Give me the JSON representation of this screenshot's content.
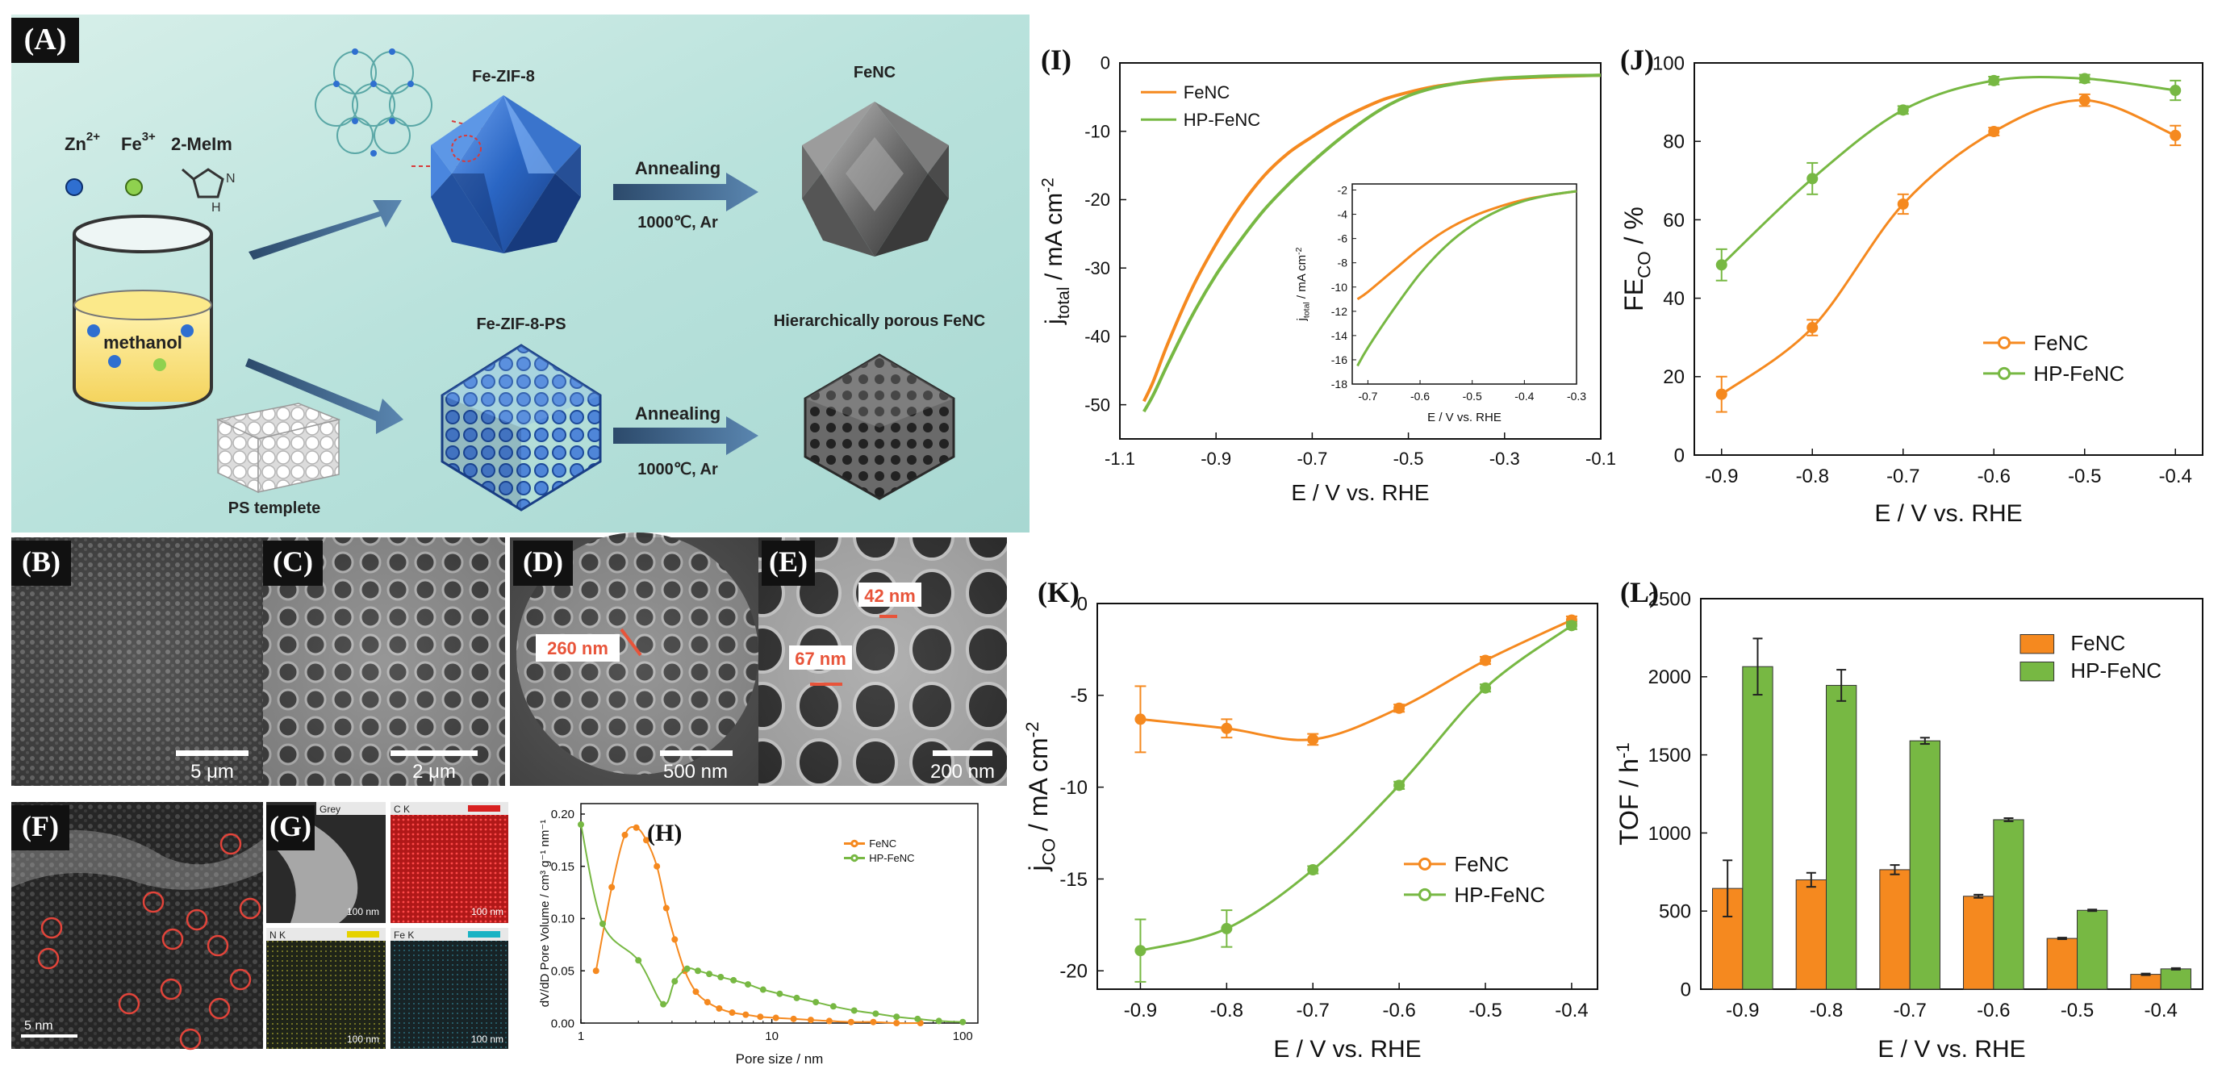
{
  "colors": {
    "fenc": "#f5891f",
    "hpfenc": "#77b843",
    "label_box": "#111111",
    "scale_text": "#ffffff",
    "measure": "#e8543a",
    "mof_blue": "#2a66c4",
    "carbon_grey": "#6e6e6e"
  },
  "panelA": {
    "label": "(A)",
    "ion_zn": "Zn",
    "ion_zn_sup": "2+",
    "ion_fe": "Fe",
    "ion_fe_sup": "3+",
    "ligand": "2-MeIm",
    "methanol": "methanol",
    "fezif8": "Fe-ZIF-8",
    "fenc": "FeNC",
    "fezif8ps": "Fe-ZIF-8-PS",
    "hpfenc": "Hierarchically porous FeNC",
    "annealing_top": "Annealing",
    "cond_top": "1000℃, Ar",
    "annealing_bottom": "Annealing",
    "cond_bottom": "1000℃, Ar",
    "ps": "PS templete"
  },
  "panelB": {
    "label": "(B)",
    "scale": "5 μm"
  },
  "panelC": {
    "label": "(C)",
    "scale": "2 μm"
  },
  "panelD": {
    "label": "(D)",
    "scale": "500 nm",
    "measure": "260 nm"
  },
  "panelE": {
    "label": "(E)",
    "scale": "200 nm",
    "measure1": "42 nm",
    "measure2": "67 nm"
  },
  "panelF": {
    "label": "(F)",
    "scale": "5 nm"
  },
  "panelG": {
    "label": "(G)",
    "tiles": [
      "Grey",
      "C K",
      "N K",
      "Fe K"
    ],
    "scale": "100 nm"
  },
  "chart_data": [
    {
      "id": "H",
      "label": "(H)",
      "type": "line",
      "xlabel": "Pore size / nm",
      "ylabel": "dV/dD Pore Volume / cm³ g⁻¹ nm⁻¹",
      "xscale": "log",
      "xlim": [
        1,
        120
      ],
      "ylim": [
        0,
        0.21
      ],
      "xticks": [
        1,
        10,
        100
      ],
      "xtick_labels": [
        "1",
        "10",
        "100"
      ],
      "yticks": [
        0,
        0.05,
        0.1,
        0.15,
        0.2
      ],
      "ytick_labels": [
        "0.00",
        "0.05",
        "0.10",
        "0.15",
        "0.20"
      ],
      "legend_position": "top-right",
      "series": [
        {
          "name": "FeNC",
          "color": "#f5891f",
          "x": [
            1.2,
            1.45,
            1.7,
            1.95,
            2.2,
            2.5,
            2.8,
            3.1,
            3.5,
            4.0,
            4.6,
            5.3,
            6.2,
            7.3,
            8.7,
            10.5,
            13,
            16,
            20,
            26,
            34,
            45,
            60
          ],
          "y": [
            0.05,
            0.13,
            0.18,
            0.187,
            0.175,
            0.15,
            0.11,
            0.08,
            0.05,
            0.03,
            0.02,
            0.014,
            0.01,
            0.008,
            0.006,
            0.005,
            0.004,
            0.003,
            0.002,
            0.001,
            0.001,
            0.0,
            0.0
          ]
        },
        {
          "name": "HP-FeNC",
          "color": "#77b843",
          "x": [
            1.0,
            1.3,
            2.0,
            2.7,
            3.1,
            3.6,
            4.1,
            4.7,
            5.4,
            6.3,
            7.5,
            9.0,
            11,
            13.5,
            17,
            21,
            27,
            35,
            45,
            58,
            75,
            100
          ],
          "y": [
            0.19,
            0.095,
            0.06,
            0.018,
            0.04,
            0.052,
            0.05,
            0.047,
            0.044,
            0.041,
            0.037,
            0.032,
            0.028,
            0.024,
            0.02,
            0.016,
            0.012,
            0.009,
            0.006,
            0.004,
            0.002,
            0.001
          ]
        }
      ]
    },
    {
      "id": "I",
      "label": "(I)",
      "type": "line",
      "xlabel": "E / V vs. RHE",
      "ylabel": "j",
      "ylabel_sub": "total",
      "ylabel_unit": " / mA cm",
      "ylabel_sup": "-2",
      "xlim": [
        -1.1,
        -0.1
      ],
      "ylim": [
        -55,
        0
      ],
      "xticks": [
        -1.1,
        -0.9,
        -0.7,
        -0.5,
        -0.3,
        -0.1
      ],
      "xtick_labels": [
        "-1.1",
        "-0.9",
        "-0.7",
        "-0.5",
        "-0.3",
        "-0.1"
      ],
      "yticks": [
        0,
        -10,
        -20,
        -30,
        -40,
        -50
      ],
      "ytick_labels": [
        "0",
        "-10",
        "-20",
        "-30",
        "-40",
        "-50"
      ],
      "legend_position": "top-left",
      "series": [
        {
          "name": "FeNC",
          "color": "#f5891f",
          "x": [
            -1.05,
            -1.03,
            -1.0,
            -0.95,
            -0.9,
            -0.85,
            -0.8,
            -0.75,
            -0.7,
            -0.65,
            -0.6,
            -0.55,
            -0.5,
            -0.45,
            -0.4,
            -0.35,
            -0.3,
            -0.2,
            -0.1
          ],
          "y": [
            -49.5,
            -46.5,
            -41.0,
            -33.0,
            -26.5,
            -21.0,
            -16.5,
            -13.2,
            -10.8,
            -8.6,
            -6.8,
            -5.3,
            -4.3,
            -3.5,
            -3.0,
            -2.6,
            -2.3,
            -2.0,
            -1.8
          ]
        },
        {
          "name": "HP-FeNC",
          "color": "#77b843",
          "x": [
            -1.05,
            -1.03,
            -1.0,
            -0.95,
            -0.9,
            -0.85,
            -0.8,
            -0.75,
            -0.7,
            -0.65,
            -0.6,
            -0.55,
            -0.5,
            -0.45,
            -0.4,
            -0.35,
            -0.3,
            -0.2,
            -0.1
          ],
          "y": [
            -51.0,
            -48.5,
            -44.0,
            -37.0,
            -31.0,
            -26.0,
            -21.5,
            -17.8,
            -14.5,
            -11.5,
            -8.8,
            -6.5,
            -4.8,
            -3.7,
            -3.0,
            -2.5,
            -2.2,
            -1.9,
            -1.8
          ]
        }
      ],
      "inset": {
        "xlabel": "E / V vs. RHE",
        "ylabel": "j",
        "ylabel_sub": "total",
        "ylabel_unit": " / mA cm",
        "ylabel_sup": "-2",
        "xlim": [
          -0.73,
          -0.3
        ],
        "ylim": [
          -18,
          -1.5
        ],
        "xticks": [
          -0.7,
          -0.6,
          -0.5,
          -0.4,
          -0.3
        ],
        "xtick_labels": [
          "-0.7",
          "-0.6",
          "-0.5",
          "-0.4",
          "-0.3"
        ],
        "yticks": [
          -2,
          -4,
          -6,
          -8,
          -10,
          -12,
          -14,
          -16,
          -18
        ],
        "ytick_labels": [
          "-2",
          "-4",
          "-6",
          "-8",
          "-10",
          "-12",
          "-14",
          "-16",
          "-18"
        ],
        "series": [
          {
            "name": "FeNC",
            "color": "#f5891f",
            "x": [
              -0.72,
              -0.7,
              -0.65,
              -0.6,
              -0.55,
              -0.5,
              -0.45,
              -0.4,
              -0.35,
              -0.3
            ],
            "y": [
              -11.0,
              -10.4,
              -8.6,
              -6.8,
              -5.3,
              -4.2,
              -3.4,
              -2.8,
              -2.4,
              -2.1
            ]
          },
          {
            "name": "HP-FeNC",
            "color": "#77b843",
            "x": [
              -0.72,
              -0.7,
              -0.65,
              -0.6,
              -0.55,
              -0.5,
              -0.45,
              -0.4,
              -0.35,
              -0.3
            ],
            "y": [
              -16.5,
              -15.0,
              -11.8,
              -8.9,
              -6.6,
              -4.9,
              -3.7,
              -2.9,
              -2.4,
              -2.1
            ]
          }
        ]
      }
    },
    {
      "id": "J",
      "label": "(J)",
      "type": "line",
      "xlabel": "E / V vs. RHE",
      "ylabel": "FE",
      "ylabel_sub": "CO",
      "ylabel_unit": " / %",
      "xlim": [
        -0.93,
        -0.37
      ],
      "ylim": [
        0,
        100
      ],
      "xticks": [
        -0.9,
        -0.8,
        -0.7,
        -0.6,
        -0.5,
        -0.4
      ],
      "xtick_labels": [
        "-0.9",
        "-0.8",
        "-0.7",
        "-0.6",
        "-0.5",
        "-0.4"
      ],
      "yticks": [
        0,
        20,
        40,
        60,
        80,
        100
      ],
      "ytick_labels": [
        "0",
        "20",
        "40",
        "60",
        "80",
        "100"
      ],
      "legend_position": "bottom-right",
      "series": [
        {
          "name": "FeNC",
          "color": "#f5891f",
          "x": [
            -0.9,
            -0.8,
            -0.7,
            -0.6,
            -0.5,
            -0.4
          ],
          "y": [
            15.5,
            32.5,
            64,
            82.5,
            90.5,
            81.5
          ],
          "err": [
            4.5,
            2,
            2.5,
            1,
            1.5,
            2.5
          ]
        },
        {
          "name": "HP-FeNC",
          "color": "#77b843",
          "x": [
            -0.9,
            -0.8,
            -0.7,
            -0.6,
            -0.5,
            -0.4
          ],
          "y": [
            48.5,
            70.5,
            88,
            95.5,
            96,
            93
          ],
          "err": [
            4,
            4,
            1,
            1,
            1,
            2.5
          ]
        }
      ]
    },
    {
      "id": "K",
      "label": "(K)",
      "type": "line",
      "xlabel": "E / V vs. RHE",
      "ylabel": "j",
      "ylabel_sub": "CO",
      "ylabel_unit": " / mA cm",
      "ylabel_sup": "-2",
      "xlim": [
        -0.95,
        -0.37
      ],
      "ylim": [
        -21,
        0
      ],
      "xticks": [
        -0.9,
        -0.8,
        -0.7,
        -0.6,
        -0.5,
        -0.4
      ],
      "xtick_labels": [
        "-0.9",
        "-0.8",
        "-0.7",
        "-0.6",
        "-0.5",
        "-0.4"
      ],
      "yticks": [
        0,
        -5,
        -10,
        -15,
        -20
      ],
      "ytick_labels": [
        "0",
        "-5",
        "-10",
        "-15",
        "-20"
      ],
      "legend_position": "bottom-right",
      "series": [
        {
          "name": "FeNC",
          "color": "#f5891f",
          "x": [
            -0.9,
            -0.8,
            -0.7,
            -0.6,
            -0.5,
            -0.4
          ],
          "y": [
            -6.3,
            -6.8,
            -7.4,
            -5.7,
            -3.1,
            -0.9
          ],
          "err": [
            1.8,
            0.5,
            0.3,
            0.2,
            0.2,
            0.2
          ]
        },
        {
          "name": "HP-FeNC",
          "color": "#77b843",
          "x": [
            -0.9,
            -0.8,
            -0.7,
            -0.6,
            -0.5,
            -0.4
          ],
          "y": [
            -18.9,
            -17.7,
            -14.5,
            -9.9,
            -4.6,
            -1.2
          ],
          "err": [
            1.7,
            1.0,
            0.2,
            0.2,
            0.2,
            0.2
          ]
        }
      ]
    },
    {
      "id": "L",
      "label": "(L)",
      "type": "bar",
      "xlabel": "E / V vs. RHE",
      "ylabel": "TOF / h",
      "ylabel_sup": "-1",
      "categories": [
        "-0.9",
        "-0.8",
        "-0.7",
        "-0.6",
        "-0.5",
        "-0.4"
      ],
      "ylim": [
        0,
        2500
      ],
      "yticks": [
        0,
        500,
        1000,
        1500,
        2000,
        2500
      ],
      "ytick_labels": [
        "0",
        "500",
        "1000",
        "1500",
        "2000",
        "2500"
      ],
      "legend_position": "top-right",
      "series": [
        {
          "name": "FeNC",
          "color": "#f5891f",
          "values": [
            645,
            700,
            765,
            595,
            325,
            95
          ],
          "err": [
            180,
            45,
            30,
            10,
            5,
            5
          ]
        },
        {
          "name": "HP-FeNC",
          "color": "#77b843",
          "values": [
            2065,
            1945,
            1590,
            1085,
            505,
            130
          ],
          "err": [
            180,
            100,
            20,
            10,
            5,
            5
          ]
        }
      ]
    }
  ]
}
